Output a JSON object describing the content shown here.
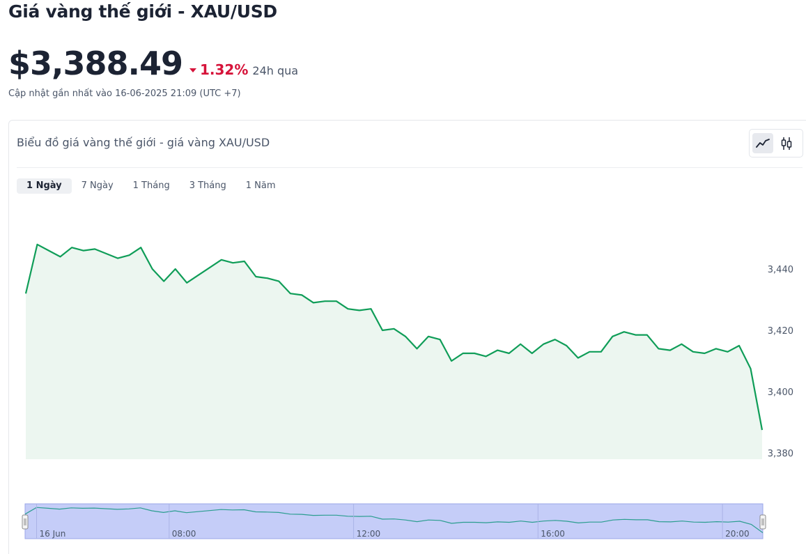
{
  "header": {
    "title": "Giá vàng thế giới - XAU/USD",
    "price": "$3,388.49",
    "change_pct": "1.32%",
    "change_direction": "down",
    "change_period": "24h qua",
    "updated": "Cập nhật gần nhất vào 16-06-2025 21:09 (UTC +7)"
  },
  "card": {
    "title": "Biểu đồ giá vàng thế giới - giá vàng XAU/USD",
    "chart_types": [
      {
        "name": "line-chart-icon",
        "active": true
      },
      {
        "name": "candlestick-icon",
        "active": false
      }
    ],
    "ranges": [
      {
        "label": "1 Ngày",
        "active": true
      },
      {
        "label": "7 Ngày",
        "active": false
      },
      {
        "label": "1 Tháng",
        "active": false
      },
      {
        "label": "3 Tháng",
        "active": false
      },
      {
        "label": "1 Năm",
        "active": false
      }
    ]
  },
  "colors": {
    "line": "#0f9d58",
    "area": "#ecf6f0",
    "down": "#d6133a",
    "navigator_bg": "#c5cdf8",
    "navigator_line": "#2a9d8f"
  },
  "chart_data": {
    "type": "area",
    "x": [
      0,
      1,
      2,
      3,
      4,
      5,
      6,
      7,
      8,
      9,
      10,
      11,
      12,
      13,
      14,
      15,
      16,
      17,
      18,
      19,
      20,
      21,
      22,
      23,
      24,
      25,
      26,
      27,
      28,
      29,
      30,
      31,
      32,
      33,
      34,
      35,
      36,
      37,
      38,
      39,
      40,
      41,
      42,
      43,
      44,
      45,
      46,
      47,
      48,
      49,
      50,
      51,
      52,
      53,
      54,
      55,
      56,
      57,
      58,
      59,
      60,
      61,
      62,
      63,
      64
    ],
    "values": [
      3432,
      3448,
      3446,
      3444,
      3447,
      3446,
      3446.5,
      3445,
      3443.5,
      3444.5,
      3447,
      3440,
      3436,
      3440,
      3435.5,
      3438,
      3440.5,
      3443,
      3442,
      3442.5,
      3437.5,
      3437,
      3436,
      3432,
      3431.5,
      3429,
      3429.5,
      3429.5,
      3427,
      3426.5,
      3427,
      3420,
      3420.5,
      3418,
      3414,
      3418,
      3417,
      3410,
      3412.5,
      3412.5,
      3411.5,
      3413.5,
      3412.5,
      3415.5,
      3412.5,
      3415.5,
      3417,
      3415,
      3411,
      3413,
      3413,
      3418,
      3419.5,
      3418.5,
      3418.5,
      3414,
      3413.5,
      3415.5,
      3413,
      3412.5,
      3414,
      3413,
      3415,
      3407.5,
      3387.5
    ],
    "ylim": [
      3380,
      3450
    ],
    "yticks": [
      3380,
      3400,
      3420,
      3440
    ],
    "ytick_labels": [
      "3,380",
      "3,400",
      "3,420",
      "3,440"
    ],
    "navigator_labels": [
      {
        "label": "16 Jun",
        "at": 1
      },
      {
        "label": "08:00",
        "at": 12.5
      },
      {
        "label": "12:00",
        "at": 28.5
      },
      {
        "label": "16:00",
        "at": 44.5
      },
      {
        "label": "20:00",
        "at": 60.5
      }
    ]
  }
}
